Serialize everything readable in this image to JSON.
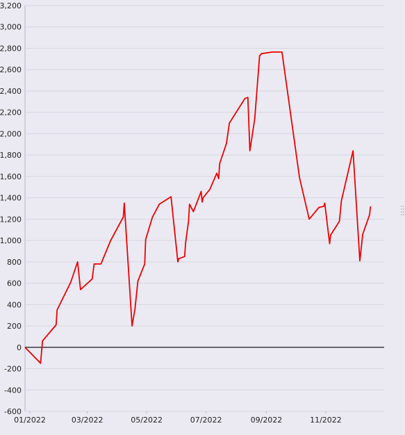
{
  "chart_data": {
    "type": "line",
    "title": "",
    "xlabel": "",
    "ylabel": "",
    "ylim": [
      -600,
      3200
    ],
    "yticks": [
      -600,
      -400,
      -200,
      0,
      200,
      400,
      600,
      800,
      1000,
      1200,
      1400,
      1600,
      1800,
      2000,
      2200,
      2400,
      2600,
      2800,
      3000,
      3200
    ],
    "ytick_labels": [
      "-600",
      "-400",
      "-200",
      "0",
      "200",
      "400",
      "600",
      "800",
      "1,000",
      "1,200",
      "1,400",
      "1,600",
      "1,800",
      "2,000",
      "2,200",
      "2,400",
      "2,600",
      "2,800",
      "3,000",
      "3,200"
    ],
    "xlim": [
      "2021-12-27",
      "2022-12-31"
    ],
    "xticks": [
      "2022-01-01",
      "2022-03-01",
      "2022-05-01",
      "2022-07-01",
      "2022-09-01",
      "2022-11-01"
    ],
    "xtick_labels": [
      "01/2022",
      "03/2022",
      "05/2022",
      "07/2022",
      "09/2022",
      "11/2022"
    ],
    "grid": true,
    "series": [
      {
        "color": "#ee0000",
        "x": [
          "2021-12-27",
          "2022-01-12",
          "2022-01-14",
          "2022-01-28",
          "2022-01-29",
          "2022-02-12",
          "2022-02-19",
          "2022-02-22",
          "2022-03-06",
          "2022-03-08",
          "2022-03-15",
          "2022-03-25",
          "2022-04-07",
          "2022-04-08",
          "2022-04-16",
          "2022-04-19",
          "2022-04-22",
          "2022-04-29",
          "2022-04-30",
          "2022-05-07",
          "2022-05-14",
          "2022-05-26",
          "2022-06-02",
          "2022-06-03",
          "2022-06-09",
          "2022-06-10",
          "2022-06-13",
          "2022-06-14",
          "2022-06-18",
          "2022-06-26",
          "2022-06-27",
          "2022-06-28",
          "2022-07-05",
          "2022-07-12",
          "2022-07-14",
          "2022-07-15",
          "2022-07-22",
          "2022-07-25",
          "2022-08-10",
          "2022-08-13",
          "2022-08-15",
          "2022-08-20",
          "2022-08-25",
          "2022-08-27",
          "2022-09-07",
          "2022-09-17",
          "2022-10-05",
          "2022-10-15",
          "2022-10-25",
          "2022-10-30",
          "2022-10-31",
          "2022-11-05",
          "2022-11-06",
          "2022-11-15",
          "2022-11-17",
          "2022-11-29",
          "2022-12-06",
          "2022-12-09",
          "2022-12-16",
          "2022-12-17"
        ],
        "y": [
          0,
          -150,
          60,
          210,
          350,
          610,
          800,
          540,
          640,
          780,
          780,
          1000,
          1220,
          1350,
          200,
          360,
          620,
          780,
          1010,
          1220,
          1340,
          1410,
          800,
          830,
          850,
          980,
          1180,
          1340,
          1270,
          1460,
          1360,
          1400,
          1480,
          1630,
          1580,
          1720,
          1910,
          2100,
          2330,
          2340,
          1840,
          2140,
          2730,
          2750,
          2765,
          2765,
          1590,
          1200,
          1310,
          1320,
          1350,
          970,
          1050,
          1180,
          1370,
          1840,
          810,
          1060,
          1240,
          1320
        ]
      }
    ]
  }
}
